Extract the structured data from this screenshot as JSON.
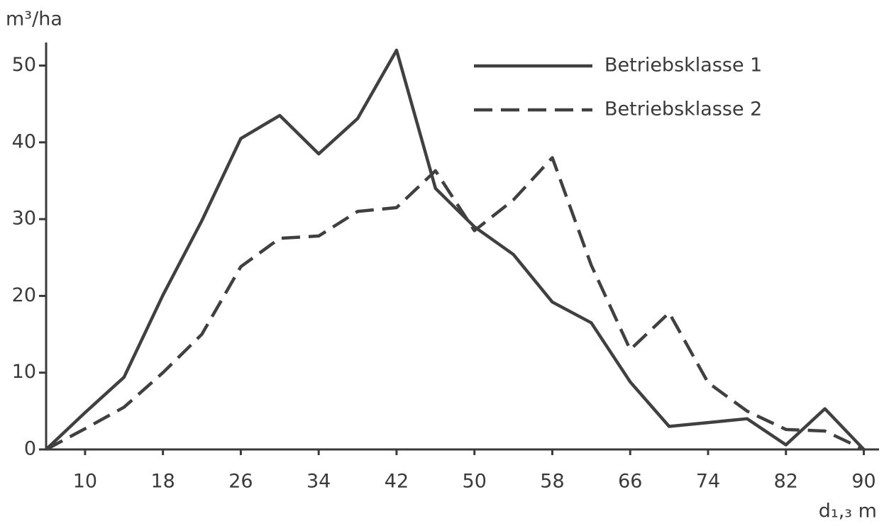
{
  "chart_data": {
    "type": "line",
    "y_label": "m³/ha",
    "x_label": "d₁,₃ m",
    "x": [
      6,
      10,
      14,
      18,
      22,
      26,
      30,
      34,
      38,
      42,
      46,
      50,
      54,
      58,
      62,
      66,
      70,
      74,
      78,
      82,
      86,
      90
    ],
    "series": [
      {
        "name": "Betriebsklasse 1",
        "color": "#404040",
        "dash": "solid",
        "values": [
          0,
          4.8,
          9.4,
          20.1,
          29.8,
          40.5,
          43.5,
          38.5,
          43.1,
          52,
          34,
          29,
          25.4,
          19.2,
          16.5,
          8.8,
          3,
          3.5,
          4,
          0.6,
          5.3,
          0
        ]
      },
      {
        "name": "Betriebsklasse 2",
        "color": "#404040",
        "dash": "dashed",
        "values": [
          0,
          2.7,
          5.5,
          10,
          15,
          23.8,
          27.5,
          27.8,
          31,
          31.5,
          36.3,
          28.5,
          32.5,
          38,
          24,
          13,
          17.8,
          8.7,
          5,
          2.6,
          2.4,
          0
        ]
      }
    ],
    "xlim": [
      6,
      92
    ],
    "ylim": [
      0,
      53
    ],
    "xticks": [
      10,
      18,
      26,
      34,
      42,
      50,
      58,
      66,
      74,
      82,
      90
    ],
    "yticks": [
      0,
      10,
      20,
      30,
      40,
      50
    ],
    "legend": "upper right"
  }
}
